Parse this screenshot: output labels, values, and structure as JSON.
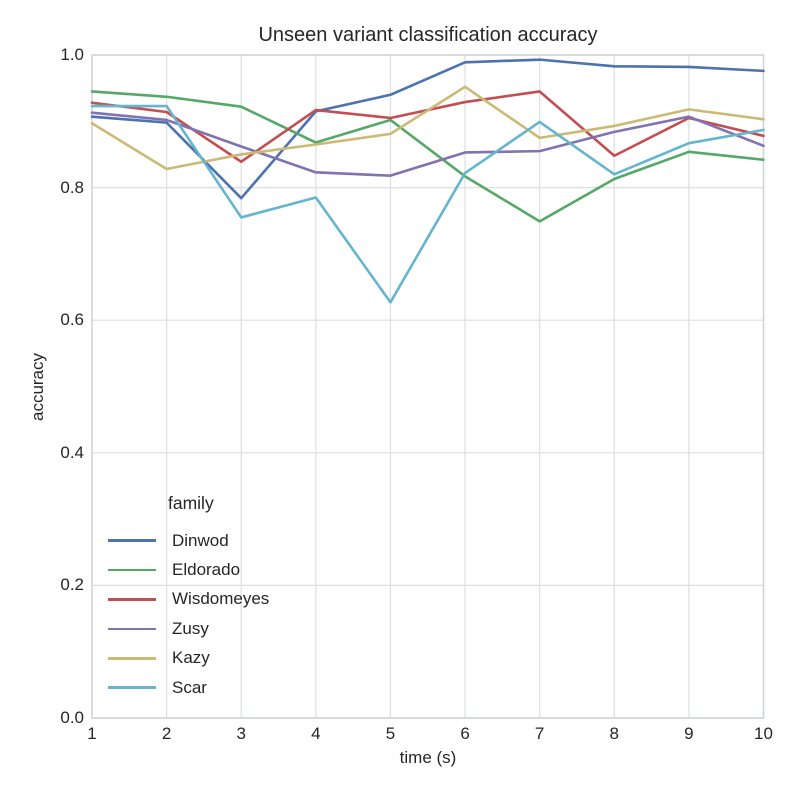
{
  "chart_data": {
    "type": "line",
    "title": "Unseen variant classification accuracy",
    "xlabel": "time (s)",
    "ylabel": "accuracy",
    "legend_title": "family",
    "legend_position": "lower left inside plot",
    "grid": true,
    "xlim": [
      1,
      10
    ],
    "ylim": [
      0.0,
      1.0
    ],
    "x_ticks": [
      "1",
      "2",
      "3",
      "4",
      "5",
      "6",
      "7",
      "8",
      "9",
      "10"
    ],
    "y_ticks": [
      "0.0",
      "0.2",
      "0.4",
      "0.6",
      "0.8",
      "1.0"
    ],
    "x": [
      1,
      2,
      3,
      4,
      5,
      6,
      7,
      8,
      9,
      10
    ],
    "series": [
      {
        "name": "Dinwod",
        "color": "#4C72B0",
        "values": [
          0.907,
          0.898,
          0.784,
          0.915,
          0.94,
          0.989,
          0.993,
          0.983,
          0.982,
          0.976
        ]
      },
      {
        "name": "Eldorado",
        "color": "#55A868",
        "values": [
          0.945,
          0.937,
          0.922,
          0.868,
          0.902,
          0.817,
          0.749,
          0.813,
          0.854,
          0.842
        ]
      },
      {
        "name": "Wisdomeyes",
        "color": "#C44E52",
        "values": [
          0.928,
          0.914,
          0.839,
          0.917,
          0.905,
          0.929,
          0.945,
          0.848,
          0.905,
          0.878
        ]
      },
      {
        "name": "Zusy",
        "color": "#8172B2",
        "values": [
          0.913,
          0.902,
          0.862,
          0.823,
          0.818,
          0.853,
          0.855,
          0.884,
          0.907,
          0.863
        ]
      },
      {
        "name": "Kazy",
        "color": "#CCB974",
        "values": [
          0.897,
          0.828,
          0.85,
          0.865,
          0.881,
          0.952,
          0.875,
          0.893,
          0.918,
          0.903
        ]
      },
      {
        "name": "Scar",
        "color": "#64B5CD",
        "values": [
          0.923,
          0.923,
          0.755,
          0.785,
          0.627,
          0.822,
          0.899,
          0.82,
          0.867,
          0.887
        ]
      }
    ],
    "style": {
      "grid_color": "#dcdee1",
      "spine_color": "#cdd0d4",
      "text_color": "#262626",
      "background": "#ffffff",
      "line_width": 2.6
    }
  }
}
